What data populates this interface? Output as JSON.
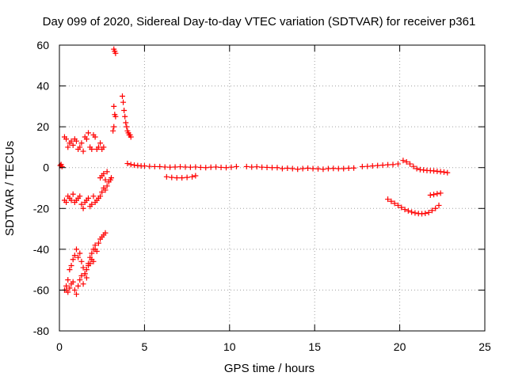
{
  "chart_data": {
    "type": "scatter",
    "title": "Day 099 of 2020, Sidereal Day-to-day VTEC variation (SDTVAR) for receiver p361",
    "xlabel": "GPS time / hours",
    "ylabel": "SDTVAR / TECUs",
    "xlim": [
      0,
      25
    ],
    "ylim": [
      -80,
      60
    ],
    "xticks": [
      0,
      5,
      10,
      15,
      20,
      25
    ],
    "yticks": [
      -80,
      -60,
      -40,
      -20,
      0,
      20,
      40,
      60
    ],
    "xtick_labels": [
      "0",
      "5",
      "10",
      "15",
      "20",
      "25"
    ],
    "ytick_labels": [
      "-80",
      "-60",
      "-40",
      "-20",
      "0",
      "20",
      "40",
      "60"
    ],
    "grid": true,
    "marker": "+",
    "color": "#ff0000",
    "series": [
      {
        "name": "SDTVAR",
        "x": [
          0.05,
          0.1,
          0.15,
          0.3,
          0.4,
          0.5,
          0.6,
          0.7,
          0.8,
          0.9,
          1.0,
          1.1,
          1.2,
          1.3,
          1.4,
          1.5,
          1.6,
          1.7,
          1.8,
          1.9,
          2.0,
          2.1,
          2.2,
          2.3,
          2.4,
          2.5,
          2.6,
          0.3,
          0.4,
          0.5,
          0.6,
          0.7,
          0.8,
          0.9,
          1.0,
          1.1,
          1.2,
          1.3,
          1.4,
          1.5,
          1.6,
          1.7,
          1.8,
          1.9,
          2.0,
          2.1,
          2.2,
          2.3,
          2.4,
          2.5,
          2.6,
          2.7,
          2.8,
          2.9,
          3.0,
          3.05,
          0.4,
          0.5,
          0.6,
          0.7,
          0.8,
          0.9,
          1.0,
          1.1,
          1.2,
          1.3,
          1.4,
          1.5,
          1.6,
          1.7,
          1.8,
          1.9,
          2.0,
          2.1,
          2.2,
          2.3,
          2.4,
          2.5,
          2.6,
          2.7,
          0.3,
          0.4,
          0.5,
          0.6,
          0.7,
          0.8,
          0.9,
          1.0,
          1.1,
          1.2,
          1.3,
          1.4,
          1.5,
          1.6,
          1.7,
          1.8,
          1.9,
          2.0,
          2.1,
          2.4,
          2.5,
          2.6,
          2.7,
          2.8,
          3.2,
          3.25,
          3.3,
          3.2,
          3.25,
          3.2,
          3.15,
          3.3,
          3.7,
          3.75,
          3.8,
          3.85,
          3.9,
          3.95,
          4.0,
          4.05,
          4.1,
          4.15,
          4.2,
          4.0,
          4.2,
          4.4,
          4.6,
          4.8,
          5.0,
          5.3,
          5.6,
          5.9,
          6.2,
          6.5,
          6.8,
          7.1,
          7.4,
          7.7,
          8.0,
          8.3,
          8.6,
          8.9,
          9.2,
          9.5,
          9.8,
          10.1,
          10.4,
          11.0,
          11.3,
          11.6,
          11.9,
          12.2,
          12.5,
          12.8,
          13.1,
          13.4,
          13.7,
          14.0,
          14.3,
          14.6,
          14.9,
          15.2,
          15.5,
          15.8,
          16.1,
          16.4,
          16.7,
          17.0,
          17.3,
          17.8,
          18.1,
          18.4,
          18.7,
          19.0,
          19.3,
          19.6,
          19.9,
          20.2,
          20.4,
          20.6,
          20.8,
          21.0,
          21.2,
          21.4,
          21.6,
          21.8,
          22.0,
          22.2,
          22.4,
          22.6,
          22.8,
          6.3,
          6.6,
          6.9,
          7.2,
          7.5,
          7.8,
          8.0,
          19.3,
          19.5,
          19.7,
          19.9,
          20.1,
          20.3,
          20.5,
          20.7,
          20.9,
          21.1,
          21.3,
          21.5,
          21.7,
          21.9,
          22.1,
          22.3,
          21.8,
          22.0,
          22.2,
          22.4
        ],
        "y": [
          1,
          1.5,
          0.5,
          15,
          14,
          10,
          12,
          13,
          11,
          14,
          13,
          9,
          10,
          12,
          8,
          15,
          14,
          17,
          10,
          9,
          16,
          15,
          9,
          10,
          12,
          9,
          10,
          -16,
          -17,
          -14,
          -15,
          -16,
          -13,
          -17,
          -16,
          -15,
          -14,
          -18,
          -20,
          -17,
          -16,
          -15,
          -19,
          -18,
          -14,
          -17,
          -16,
          -15,
          -14,
          -12,
          -10,
          -11,
          -9,
          -7,
          -6,
          -5,
          -60,
          -55,
          -50,
          -48,
          -45,
          -43,
          -40,
          -44,
          -42,
          -46,
          -49,
          -52,
          -50,
          -47,
          -44,
          -42,
          -46,
          -40,
          -41,
          -37,
          -35,
          -34,
          -33,
          -32,
          -60,
          -58,
          -61,
          -59,
          -57,
          -56,
          -60,
          -62,
          -58,
          -55,
          -53,
          -57,
          -52,
          -54,
          -48,
          -47,
          -45,
          -40,
          -38,
          -5,
          -4,
          -3,
          -6,
          -2,
          58,
          57,
          56,
          30,
          26,
          20,
          18,
          25,
          35,
          32,
          28,
          25,
          22,
          20,
          18,
          17,
          16,
          16,
          15,
          2,
          1.5,
          1.2,
          1,
          0.8,
          0.8,
          0.6,
          0.5,
          0.5,
          0.3,
          0.2,
          0.3,
          0.4,
          0.3,
          0.2,
          0.3,
          0.1,
          0,
          0.2,
          0.3,
          0.1,
          0,
          0.2,
          0.5,
          0.5,
          0.3,
          0.4,
          0.2,
          0.1,
          0,
          0,
          -0.5,
          -0.3,
          -0.5,
          -0.8,
          -0.5,
          -0.3,
          -0.5,
          -0.6,
          -0.8,
          -0.5,
          -0.4,
          -0.5,
          -0.5,
          -0.3,
          -0.2,
          0.5,
          0.6,
          0.8,
          1,
          1.2,
          1.4,
          1.5,
          1.8,
          3.5,
          2.8,
          1.8,
          0.6,
          -0.5,
          -1.0,
          -1.2,
          -1.4,
          -1.5,
          -1.6,
          -1.8,
          -2.0,
          -2.2,
          -2.5,
          -4.5,
          -4.8,
          -5,
          -5,
          -4.8,
          -4.5,
          -4,
          -15.5,
          -16.5,
          -17.5,
          -18.5,
          -19.5,
          -20.5,
          -21.2,
          -21.8,
          -22.2,
          -22.5,
          -22.6,
          -22.4,
          -22,
          -21,
          -20,
          -18.5,
          -13.5,
          -13.2,
          -12.8,
          -12.5
        ]
      }
    ]
  }
}
